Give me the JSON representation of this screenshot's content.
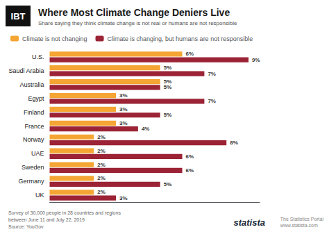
{
  "chart_data": {
    "type": "bar",
    "orientation": "horizontal",
    "title": "Where Most Climate Change Deniers Live",
    "subtitle": "Share saying they think climate change is not real or humans are not responsible",
    "annotations": [
      "IBT",
      "Survey of 30,000 people in 28 countries and regions\nbetween June 11 and July 22, 2019\nSource: YouGov",
      "statista",
      "The Statistics Portal\nwww.statista.com"
    ],
    "categories": [
      "U.S.",
      "Saudi Arabia",
      "Australia",
      "Egypt",
      "Finland",
      "France",
      "Norway",
      "UAE",
      "Sweden",
      "Germany",
      "UK"
    ],
    "series": [
      {
        "name": "Climate is not changing",
        "color": "#F5A533",
        "values": [
          6,
          5,
          5,
          3,
          3,
          3,
          2,
          2,
          2,
          2,
          2
        ],
        "value_labels": [
          "6%",
          "5%",
          "5%",
          "3%",
          "3%",
          "3%",
          "2%",
          "2%",
          "2%",
          "2%",
          "2%"
        ]
      },
      {
        "name": "Climate is changing, but humans are not responsible",
        "color": "#9B2335",
        "values": [
          9,
          7,
          5,
          7,
          5,
          4,
          8,
          6,
          6,
          5,
          3
        ],
        "value_labels": [
          "9%",
          "7%",
          "5%",
          "7%",
          "5%",
          "4%",
          "8%",
          "6%",
          "6%",
          "5%",
          "3%"
        ]
      }
    ],
    "xlim": [
      0,
      9.5
    ],
    "tick_labels": "y",
    "grid": false,
    "legend": "upper left",
    "data_labels": true
  }
}
